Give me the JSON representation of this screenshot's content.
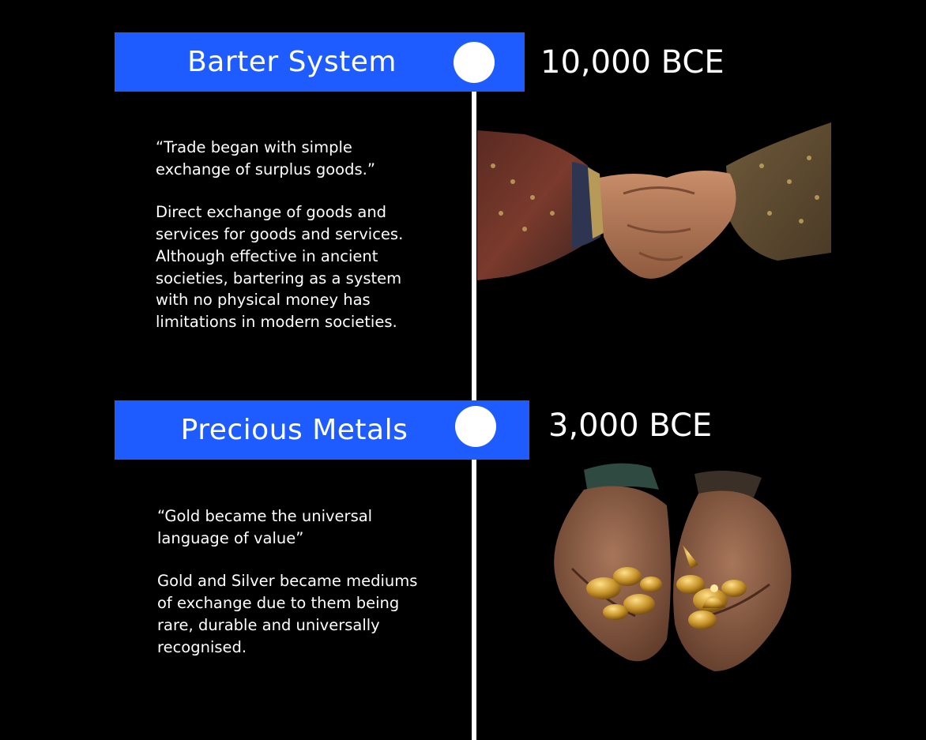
{
  "timeline": [
    {
      "title": "Barter System",
      "era": "10,000 BCE",
      "quote_lines": [
        "“Trade began with simple",
        "exchange of surplus goods.”"
      ],
      "description_lines": [
        "Direct exchange of goods and",
        "services for goods and services.",
        "Although effective in ancient",
        "societies, bartering as a system",
        "with no physical money has",
        "limitations in modern societies."
      ],
      "image_icon": "handshake-icon"
    },
    {
      "title": "Precious Metals",
      "era": "3,000 BCE",
      "quote_lines": [
        "“Gold became the universal",
        "language of value”"
      ],
      "description_lines": [
        "Gold and Silver became mediums",
        "of exchange due to them being",
        "rare, durable and universally",
        "recognised."
      ],
      "image_icon": "gold-in-hands-icon"
    }
  ],
  "colors": {
    "background": "#000000",
    "banner": "#1f5cff",
    "line": "#ffffff",
    "text": "#ffffff"
  }
}
